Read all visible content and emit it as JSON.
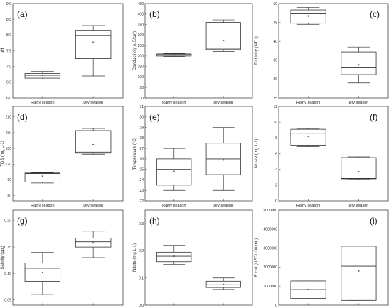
{
  "chart_data": [
    {
      "type": "box",
      "panel_label": "(a)",
      "ylabel": "pH",
      "ylim": [
        6.0,
        9.0
      ],
      "yticks": [
        "6.0",
        "6.5",
        "7.0",
        "7.5",
        "8.0",
        "8.5",
        "9.0"
      ],
      "ytick_values": [
        6.0,
        6.5,
        7.0,
        7.5,
        8.0,
        8.5,
        9.0
      ],
      "categories": [
        "Rainy season",
        "Dry season"
      ],
      "boxes": [
        {
          "category": "Rainy season",
          "whisker_low": 6.6,
          "q1": 6.63,
          "median": 6.72,
          "q3": 6.78,
          "whisker_high": 6.85,
          "mean": 6.72
        },
        {
          "category": "Dry season",
          "whisker_low": 6.7,
          "q1": 7.25,
          "median": 7.98,
          "q3": 8.15,
          "whisker_high": 8.3,
          "mean": 7.77
        }
      ]
    },
    {
      "type": "box",
      "panel_label": "(b)",
      "ylabel": "Conductivity (uS/cm)",
      "ylim": [
        0,
        450
      ],
      "yticks": [
        "0",
        "50",
        "100",
        "150",
        "200",
        "250",
        "300",
        "350",
        "400",
        "450"
      ],
      "ytick_values": [
        0,
        50,
        100,
        150,
        200,
        250,
        300,
        350,
        400,
        450
      ],
      "categories": [
        "Rainy season",
        "Dry season"
      ],
      "boxes": [
        {
          "category": "Rainy season",
          "whisker_low": 197,
          "q1": 200,
          "median": 206,
          "q3": 210,
          "whisker_high": 212,
          "mean": 206
        },
        {
          "category": "Dry season",
          "whisker_low": 222,
          "q1": 228,
          "median": 233,
          "q3": 360,
          "whisker_high": 372,
          "mean": 274
        }
      ]
    },
    {
      "type": "box",
      "panel_label": "(c)",
      "ylabel": "Turbidity (NTU)",
      "ylim": [
        25,
        50
      ],
      "yticks": [
        "25",
        "30",
        "35",
        "40",
        "45",
        "50"
      ],
      "ytick_values": [
        25,
        30,
        35,
        40,
        45,
        50
      ],
      "categories": [
        "Rainy season",
        "Dry season"
      ],
      "boxes": [
        {
          "category": "Rainy season",
          "whisker_low": 44.5,
          "q1": 44.8,
          "median": 47.3,
          "q3": 48.3,
          "whisker_high": 49,
          "mean": 46.7
        },
        {
          "category": "Dry season",
          "whisker_low": 29,
          "q1": 31.2,
          "median": 33,
          "q3": 37.2,
          "whisker_high": 38.5,
          "mean": 33.8
        }
      ]
    },
    {
      "type": "box",
      "panel_label": "(d)",
      "ylabel": "TDS (mg L-1)",
      "ylim": [
        50,
        230
      ],
      "yticks": [
        "60",
        "90",
        "120",
        "150",
        "180",
        "210"
      ],
      "ytick_values": [
        60,
        90,
        120,
        150,
        180,
        210
      ],
      "categories": [
        "Rainy season",
        "Dry season"
      ],
      "boxes": [
        {
          "category": "Rainy season",
          "whisker_low": 84,
          "q1": 86,
          "median": 102,
          "q3": 103,
          "whisker_high": 104,
          "mean": 97
        },
        {
          "category": "Dry season",
          "whisker_low": 139,
          "q1": 141,
          "median": 143,
          "q3": 184,
          "whisker_high": 188,
          "mean": 157
        }
      ]
    },
    {
      "type": "box",
      "panel_label": "(e)",
      "ylabel": "Temperature (°C)",
      "ylim": [
        22,
        31
      ],
      "yticks": [
        "22",
        "23",
        "24",
        "25",
        "26",
        "27",
        "28",
        "29",
        "30",
        "31"
      ],
      "ytick_values": [
        22,
        23,
        24,
        25,
        26,
        27,
        28,
        29,
        30,
        31
      ],
      "categories": [
        "Rainy season",
        "Dry season"
      ],
      "boxes": [
        {
          "category": "Rainy season",
          "whisker_low": 23,
          "q1": 23.5,
          "median": 25,
          "q3": 26,
          "whisker_high": 27,
          "mean": 24.8
        },
        {
          "category": "Dry season",
          "whisker_low": 23,
          "q1": 24.5,
          "median": 26,
          "q3": 27.5,
          "whisker_high": 29,
          "mean": 25.9
        }
      ]
    },
    {
      "type": "box",
      "panel_label": "(f)",
      "ylabel": "Nitrate (mg L-1)",
      "ylim": [
        0,
        12
      ],
      "yticks": [
        "0",
        "2",
        "4",
        "6",
        "8",
        "10",
        "12"
      ],
      "ytick_values": [
        0,
        2,
        4,
        6,
        8,
        10,
        12
      ],
      "categories": [
        "Rainy season",
        "Dry season"
      ],
      "boxes": [
        {
          "category": "Rainy season",
          "whisker_low": 6.9,
          "q1": 7.0,
          "median": 8.6,
          "q3": 9.1,
          "whisker_high": 9.2,
          "mean": 8.2
        },
        {
          "category": "Dry season",
          "whisker_low": 2.7,
          "q1": 2.8,
          "median": 2.85,
          "q3": 5.5,
          "whisker_high": 5.6,
          "mean": 3.7
        }
      ]
    },
    {
      "type": "box",
      "panel_label": "(g)",
      "ylabel": "Salinity (ppt)",
      "ylim": [
        0.04,
        0.22
      ],
      "yticks": [
        "0.05",
        "0.10",
        "0.15",
        "0.20"
      ],
      "ytick_values": [
        0.05,
        0.1,
        0.15,
        0.2
      ],
      "categories": [
        "Rainy season",
        "Dry season"
      ],
      "boxes": [
        {
          "category": "Rainy season",
          "whisker_low": 0.06,
          "q1": 0.085,
          "median": 0.11,
          "q3": 0.12,
          "whisker_high": 0.14,
          "mean": 0.102
        },
        {
          "category": "Dry season",
          "whisker_low": 0.13,
          "q1": 0.15,
          "median": 0.16,
          "q3": 0.167,
          "whisker_high": 0.18,
          "mean": 0.158
        }
      ]
    },
    {
      "type": "box",
      "panel_label": "(h)",
      "ylabel": "Nitrite (mg L-1)",
      "ylim": [
        0,
        0.35
      ],
      "yticks": [
        "0.0",
        "0.1",
        "0.2",
        "0.3"
      ],
      "ytick_values": [
        0.0,
        0.1,
        0.2,
        0.3
      ],
      "categories": [
        "Rainy season",
        "Dry season"
      ],
      "boxes": [
        {
          "category": "Rainy season",
          "whisker_low": 0.15,
          "q1": 0.16,
          "median": 0.18,
          "q3": 0.195,
          "whisker_high": 0.22,
          "mean": 0.18
        },
        {
          "category": "Dry season",
          "whisker_low": 0.058,
          "q1": 0.065,
          "median": 0.075,
          "q3": 0.088,
          "whisker_high": 0.1,
          "mean": 0.076
        }
      ]
    },
    {
      "type": "box",
      "panel_label": "(i)",
      "ylabel": "E.coli (UFC/100 mL)",
      "ylim": [
        0,
        5000000
      ],
      "yticks": [
        "0",
        "1000000",
        "2000000",
        "3000000",
        "4000000",
        "5000000"
      ],
      "ytick_values": [
        0,
        1000000,
        2000000,
        3000000,
        4000000,
        5000000
      ],
      "categories": [
        "Rainy season",
        "Dry season"
      ],
      "boxes": [
        {
          "category": "Rainy season",
          "whisker_low": 350000,
          "q1": 350000,
          "median": 820000,
          "q3": 1270000,
          "whisker_high": 1270000,
          "mean": 820000
        },
        {
          "category": "Dry season",
          "whisker_low": 250000,
          "q1": 250000,
          "median": 2050000,
          "q3": 3100000,
          "whisker_high": 3100000,
          "mean": 1800000
        }
      ]
    }
  ]
}
